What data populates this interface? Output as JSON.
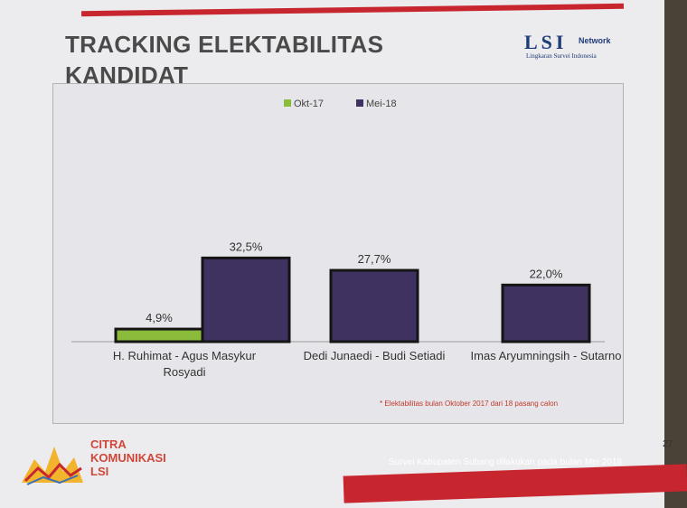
{
  "slide": {
    "title_line1": "TRACKING ELEKTABILITAS",
    "title_line2": "KANDIDAT",
    "logo": {
      "mark": "LSI",
      "word": "Network",
      "tagline": "Lingkaran Survei Indonesia"
    },
    "footnote": "* Elektabilitas bulan Oktober 2017 dari 18 pasang calon",
    "survey_note": "Survei Kabupaten Subang dilakukan pada bulan Mei 2018",
    "page_number": "27",
    "brand": {
      "line1": "CITRA",
      "line2": "KOMUNIKASI",
      "line3": "LSI"
    }
  },
  "chart_data": {
    "type": "bar",
    "categories": [
      [
        "H. Ruhimat - Agus Masykur",
        "Rosyadi"
      ],
      [
        "Dedi Junaedi - Budi Setiadi"
      ],
      [
        "Imas Aryumningsih - Sutarno"
      ]
    ],
    "series": [
      {
        "name": "Okt-17",
        "values": [
          4.9,
          null,
          null
        ],
        "labels": [
          "4,9%",
          "",
          ""
        ],
        "color": "#8bbb3a"
      },
      {
        "name": "Mei-18",
        "values": [
          32.5,
          27.7,
          22.0
        ],
        "labels": [
          "32,5%",
          "27,7%",
          "22,0%"
        ],
        "color": "#3f3160"
      }
    ],
    "legend_position": "top-center",
    "grid": false,
    "ylim": [
      0,
      100
    ]
  }
}
